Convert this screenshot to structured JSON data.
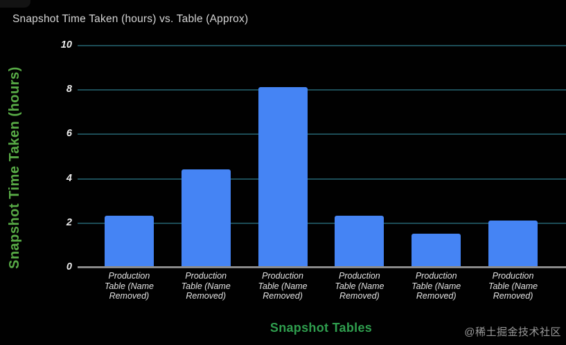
{
  "chart": {
    "title": "Snapshot Time Taken (hours) vs. Table (Approx)",
    "y_axis_label": "Snapshot Time Taken (hours)",
    "x_axis_label": "Snapshot Tables"
  },
  "watermark": {
    "text": "@稀土掘金技术社区"
  },
  "colors": {
    "background": "#010101",
    "bar": "#4584f4",
    "gridline": "#1d4e58",
    "baseline": "#8a8a8a",
    "title_text": "#d6d6d6",
    "tick_text": "#ececec",
    "y_axis_label_green": "#58ab46",
    "x_axis_label_green": "#2f9e4e",
    "watermark_text": "#9b9b9b"
  },
  "chart_data": {
    "type": "bar",
    "title": "Snapshot Time Taken (hours) vs. Table (Approx)",
    "xlabel": "Snapshot Tables",
    "ylabel": "Snapshot Time Taken (hours)",
    "categories": [
      "Production Table (Name Removed)",
      "Production Table (Name Removed)",
      "Production Table (Name Removed)",
      "Production Table (Name Removed)",
      "Production Table (Name Removed)",
      "Production Table (Name Removed)"
    ],
    "values": [
      2.3,
      4.4,
      8.1,
      2.3,
      1.5,
      2.1
    ],
    "ylim": [
      0,
      10
    ],
    "yticks": [
      0,
      2,
      4,
      6,
      8,
      10
    ],
    "grid": true,
    "legend_position": "none",
    "bar_color": "#4584f4"
  }
}
